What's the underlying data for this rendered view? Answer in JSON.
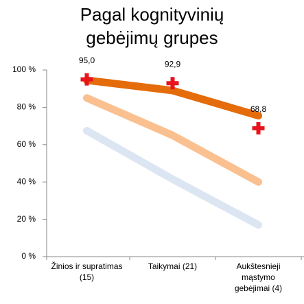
{
  "chart_data": {
    "type": "line",
    "title": "Pagal kognityvinių gebėjimų grupes",
    "categories": [
      "Žinios ir supratimas (15)",
      "Taikymai (21)",
      "Aukštesnieji mąstymo gebėjimai (4)"
    ],
    "series": [
      {
        "color": "#e46c0a",
        "values": [
          94.5,
          89,
          75.5
        ]
      },
      {
        "color": "#fac090",
        "values": [
          85,
          65,
          40
        ]
      },
      {
        "color": "#dce6f2",
        "values": [
          67.5,
          41.5,
          17
        ]
      }
    ],
    "markers": {
      "color": "#e8141c",
      "values": [
        95.0,
        92.9,
        68.8
      ],
      "value_labels": [
        "95,0",
        "92,9",
        "68,8"
      ]
    },
    "ylim": [
      0,
      100
    ],
    "yticks": [
      {
        "value": 0,
        "label": "0 %"
      },
      {
        "value": 20,
        "label": "20 %"
      },
      {
        "value": 40,
        "label": "40 %"
      },
      {
        "value": 60,
        "label": "60 %"
      },
      {
        "value": 80,
        "label": "80 %"
      },
      {
        "value": 100,
        "label": "100 %"
      }
    ]
  }
}
